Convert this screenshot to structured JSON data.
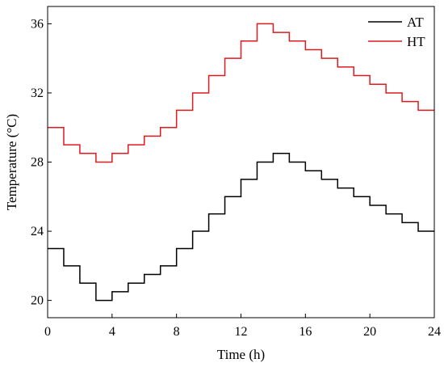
{
  "chart_data": {
    "type": "line",
    "step": true,
    "xlabel": "Time (h)",
    "ylabel": "Temperature (°C)",
    "xlim": [
      0,
      24
    ],
    "ylim": [
      19,
      37
    ],
    "xticks": [
      0,
      4,
      8,
      12,
      16,
      20,
      24
    ],
    "yticks": [
      20,
      24,
      28,
      32,
      36
    ],
    "grid": false,
    "legend": "top-right",
    "series": [
      {
        "name": "AT",
        "color": "#000000",
        "x": [
          0,
          1,
          2,
          3,
          4,
          5,
          6,
          7,
          8,
          9,
          10,
          11,
          12,
          13,
          14,
          15,
          16,
          17,
          18,
          19,
          20,
          21,
          22,
          23
        ],
        "values": [
          23,
          22,
          21,
          20,
          20.5,
          21,
          21.5,
          22,
          23,
          24,
          25,
          26,
          27,
          28,
          28.5,
          28,
          27.5,
          27,
          26.5,
          26,
          25.5,
          25,
          24.5,
          24
        ]
      },
      {
        "name": "HT",
        "color": "#e0191f",
        "x": [
          0,
          1,
          2,
          3,
          4,
          5,
          6,
          7,
          8,
          9,
          10,
          11,
          12,
          13,
          14,
          15,
          16,
          17,
          18,
          19,
          20,
          21,
          22,
          23
        ],
        "values": [
          30,
          29,
          28.5,
          28,
          28.5,
          29,
          29.5,
          30,
          31,
          32,
          33,
          34,
          35,
          36,
          35.5,
          35,
          34.5,
          34,
          33.5,
          33,
          32.5,
          32,
          31.5,
          31
        ]
      }
    ]
  }
}
